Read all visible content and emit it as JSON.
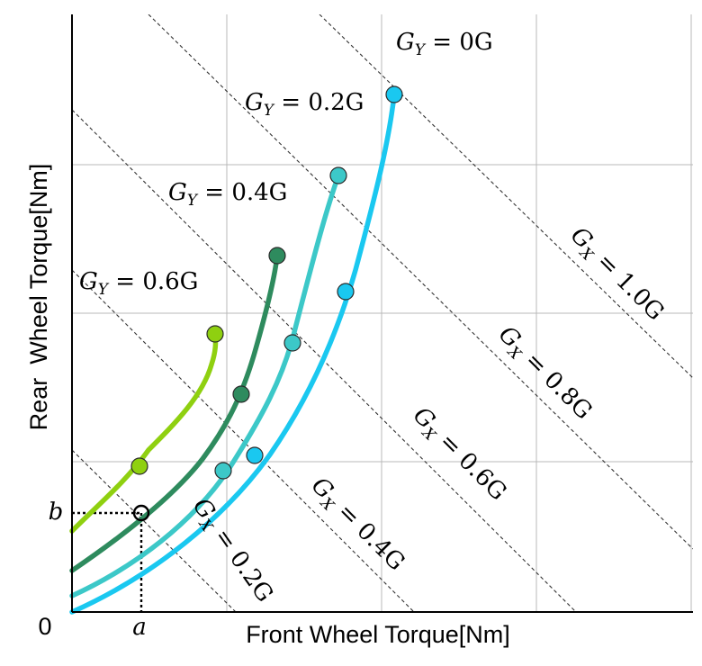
{
  "chart_data": {
    "type": "line",
    "title": "",
    "xlabel": "Front Wheel Torque[Nm]",
    "ylabel": "Rear  Wheel Torque[Nm]",
    "origin_label": "0",
    "grid": true,
    "x_ticks_labels": [],
    "y_ticks_labels": [],
    "xlim": [
      0,
      4
    ],
    "ylim": [
      0,
      4
    ],
    "series": [
      {
        "name": "G_Y = 0G",
        "color": "#1ac8f0",
        "curve": [
          [
            0,
            0
          ],
          [
            0.5,
            0.3
          ],
          [
            1.0,
            0.7
          ],
          [
            1.5,
            1.35
          ],
          [
            1.75,
            1.85
          ],
          [
            1.95,
            2.5
          ],
          [
            2.05,
            3.2
          ],
          [
            2.08,
            3.5
          ]
        ],
        "markers": [
          [
            1.17,
            1.05
          ],
          [
            1.75,
            2.15
          ],
          [
            2.08,
            3.5
          ]
        ]
      },
      {
        "name": "G_Y = 0.2G",
        "color": "#3cc8c8",
        "curve": [
          [
            0,
            0.1
          ],
          [
            0.5,
            0.4
          ],
          [
            1.0,
            0.9
          ],
          [
            1.3,
            1.35
          ],
          [
            1.45,
            1.8
          ],
          [
            1.6,
            2.35
          ],
          [
            1.72,
            2.95
          ]
        ],
        "markers": [
          [
            0.97,
            0.95
          ],
          [
            1.42,
            1.8
          ],
          [
            1.72,
            2.95
          ]
        ]
      },
      {
        "name": "G_Y = 0.4G",
        "color": "#2e8b5e",
        "curve": [
          [
            0,
            0.3
          ],
          [
            0.4,
            0.55
          ],
          [
            0.8,
            0.85
          ],
          [
            1.1,
            1.3
          ],
          [
            1.25,
            1.75
          ],
          [
            1.38,
            2.4
          ]
        ],
        "markers": [
          [
            1.1,
            1.45
          ],
          [
            1.38,
            2.4
          ]
        ]
      },
      {
        "name": "G_Y = 0.6G",
        "color": "#8fd010",
        "curve": [
          [
            0,
            0.55
          ],
          [
            0.3,
            0.75
          ],
          [
            0.6,
            1.05
          ],
          [
            0.8,
            1.35
          ],
          [
            0.9,
            1.55
          ],
          [
            0.93,
            1.85
          ]
        ],
        "markers": [
          [
            0.45,
            0.98
          ],
          [
            0.93,
            1.85
          ]
        ]
      }
    ],
    "iso_lines": [
      {
        "label": "G_X = 0.2G",
        "sum": 1.0
      },
      {
        "label": "G_X = 0.4G",
        "sum": 2.0
      },
      {
        "label": "G_X = 0.6G",
        "sum": 3.0
      },
      {
        "label": "G_X = 0.8G",
        "sum": 4.0
      },
      {
        "label": "G_X = 1.0G",
        "sum": 5.0
      }
    ],
    "example_point": {
      "x": 0.45,
      "y": 0.68,
      "x_label": "a",
      "y_label": "b"
    }
  }
}
